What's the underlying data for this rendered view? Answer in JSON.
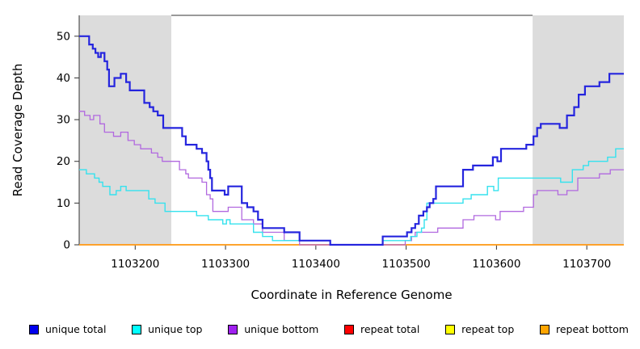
{
  "chart_data": {
    "type": "line",
    "step": true,
    "title": "",
    "xlabel": "Coordinate in Reference Genome",
    "ylabel": "Read Coverage Depth",
    "xlim": [
      1103138,
      1103741
    ],
    "ylim": [
      0,
      55
    ],
    "x_ticks": [
      1103200,
      1103300,
      1103400,
      1103500,
      1103600,
      1103700
    ],
    "y_ticks": [
      0,
      10,
      20,
      30,
      40,
      50
    ],
    "grid": false,
    "legend_position": "bottom",
    "shade_color": "#DCDCDC",
    "axis_color": "#333333",
    "shaded_regions": [
      {
        "from": 1103138,
        "to": 1103240
      },
      {
        "from": 1103640,
        "to": 1103741
      }
    ],
    "top_marker": {
      "from": 1103240,
      "to": 1103640,
      "color": "#9A9A9A"
    },
    "draw_order": [
      3,
      4,
      5,
      2,
      1,
      0
    ],
    "series": [
      {
        "name": "unique total",
        "color": "#2525DE",
        "legend_color": "#0000EE",
        "width": 2.2,
        "points": [
          [
            1103138,
            50
          ],
          [
            1103149,
            48
          ],
          [
            1103153,
            47
          ],
          [
            1103156,
            46
          ],
          [
            1103159,
            45
          ],
          [
            1103162,
            46
          ],
          [
            1103166,
            44
          ],
          [
            1103169,
            42
          ],
          [
            1103171,
            38
          ],
          [
            1103177,
            40
          ],
          [
            1103184,
            41
          ],
          [
            1103190,
            39
          ],
          [
            1103194,
            37
          ],
          [
            1103210,
            34
          ],
          [
            1103216,
            33
          ],
          [
            1103220,
            32
          ],
          [
            1103225,
            31
          ],
          [
            1103231,
            28
          ],
          [
            1103252,
            26
          ],
          [
            1103256,
            24
          ],
          [
            1103268,
            23
          ],
          [
            1103274,
            22
          ],
          [
            1103279,
            20
          ],
          [
            1103281,
            18
          ],
          [
            1103283,
            16
          ],
          [
            1103285,
            13
          ],
          [
            1103299,
            12
          ],
          [
            1103303,
            14
          ],
          [
            1103318,
            10
          ],
          [
            1103324,
            9
          ],
          [
            1103331,
            8
          ],
          [
            1103336,
            6
          ],
          [
            1103341,
            4
          ],
          [
            1103365,
            3
          ],
          [
            1103382,
            1
          ],
          [
            1103416,
            0
          ],
          [
            1103474,
            2
          ],
          [
            1103501,
            3
          ],
          [
            1103506,
            4
          ],
          [
            1103510,
            5
          ],
          [
            1103514,
            7
          ],
          [
            1103519,
            8
          ],
          [
            1103523,
            9
          ],
          [
            1103526,
            10
          ],
          [
            1103530,
            11
          ],
          [
            1103533,
            14
          ],
          [
            1103563,
            18
          ],
          [
            1103574,
            19
          ],
          [
            1103596,
            21
          ],
          [
            1103601,
            20
          ],
          [
            1103605,
            23
          ],
          [
            1103633,
            24
          ],
          [
            1103641,
            26
          ],
          [
            1103645,
            28
          ],
          [
            1103649,
            29
          ],
          [
            1103670,
            28
          ],
          [
            1103678,
            31
          ],
          [
            1103686,
            33
          ],
          [
            1103691,
            36
          ],
          [
            1103698,
            38
          ],
          [
            1103714,
            39
          ],
          [
            1103725,
            41
          ]
        ]
      },
      {
        "name": "unique top",
        "color": "#35E2EE",
        "legend_color": "#00FFFF",
        "width": 1.4,
        "points": [
          [
            1103138,
            18
          ],
          [
            1103146,
            17
          ],
          [
            1103155,
            16
          ],
          [
            1103160,
            15
          ],
          [
            1103164,
            14
          ],
          [
            1103172,
            12
          ],
          [
            1103179,
            13
          ],
          [
            1103184,
            14
          ],
          [
            1103190,
            13
          ],
          [
            1103215,
            11
          ],
          [
            1103222,
            10
          ],
          [
            1103233,
            8
          ],
          [
            1103268,
            7
          ],
          [
            1103281,
            6
          ],
          [
            1103297,
            5
          ],
          [
            1103301,
            6
          ],
          [
            1103305,
            5
          ],
          [
            1103331,
            3
          ],
          [
            1103341,
            2
          ],
          [
            1103352,
            1
          ],
          [
            1103416,
            0
          ],
          [
            1103474,
            1
          ],
          [
            1103505,
            2
          ],
          [
            1103512,
            3
          ],
          [
            1103517,
            4
          ],
          [
            1103520,
            6
          ],
          [
            1103523,
            10
          ],
          [
            1103563,
            11
          ],
          [
            1103572,
            12
          ],
          [
            1103590,
            14
          ],
          [
            1103597,
            13
          ],
          [
            1103602,
            16
          ],
          [
            1103671,
            15
          ],
          [
            1103684,
            18
          ],
          [
            1103696,
            19
          ],
          [
            1103702,
            20
          ],
          [
            1103723,
            21
          ],
          [
            1103732,
            23
          ]
        ]
      },
      {
        "name": "unique bottom",
        "color": "#B168DF",
        "legend_color": "#A020F0",
        "width": 1.3,
        "points": [
          [
            1103138,
            32
          ],
          [
            1103144,
            31
          ],
          [
            1103150,
            30
          ],
          [
            1103154,
            31
          ],
          [
            1103161,
            29
          ],
          [
            1103166,
            27
          ],
          [
            1103176,
            26
          ],
          [
            1103184,
            27
          ],
          [
            1103192,
            25
          ],
          [
            1103199,
            24
          ],
          [
            1103206,
            23
          ],
          [
            1103218,
            22
          ],
          [
            1103225,
            21
          ],
          [
            1103230,
            20
          ],
          [
            1103249,
            18
          ],
          [
            1103256,
            17
          ],
          [
            1103259,
            16
          ],
          [
            1103274,
            15
          ],
          [
            1103279,
            12
          ],
          [
            1103283,
            11
          ],
          [
            1103286,
            8
          ],
          [
            1103303,
            9
          ],
          [
            1103318,
            6
          ],
          [
            1103331,
            5
          ],
          [
            1103341,
            3
          ],
          [
            1103365,
            1
          ],
          [
            1103382,
            0
          ],
          [
            1103499,
            1
          ],
          [
            1103506,
            2
          ],
          [
            1103510,
            3
          ],
          [
            1103535,
            4
          ],
          [
            1103563,
            6
          ],
          [
            1103575,
            7
          ],
          [
            1103599,
            6
          ],
          [
            1103604,
            8
          ],
          [
            1103630,
            9
          ],
          [
            1103641,
            12
          ],
          [
            1103645,
            13
          ],
          [
            1103668,
            12
          ],
          [
            1103678,
            13
          ],
          [
            1103690,
            16
          ],
          [
            1103714,
            17
          ],
          [
            1103726,
            18
          ]
        ]
      },
      {
        "name": "repeat total",
        "color": "#DD2222",
        "legend_color": "#FF0000",
        "width": 1.3,
        "points": [
          [
            1103138,
            0
          ]
        ]
      },
      {
        "name": "repeat top",
        "color": "#EEEE22",
        "legend_color": "#FFFF00",
        "width": 1.3,
        "points": [
          [
            1103138,
            0
          ]
        ]
      },
      {
        "name": "repeat bottom",
        "color": "#FF9D1E",
        "legend_color": "#FFA500",
        "width": 1.8,
        "points": [
          [
            1103138,
            0
          ]
        ]
      }
    ]
  }
}
